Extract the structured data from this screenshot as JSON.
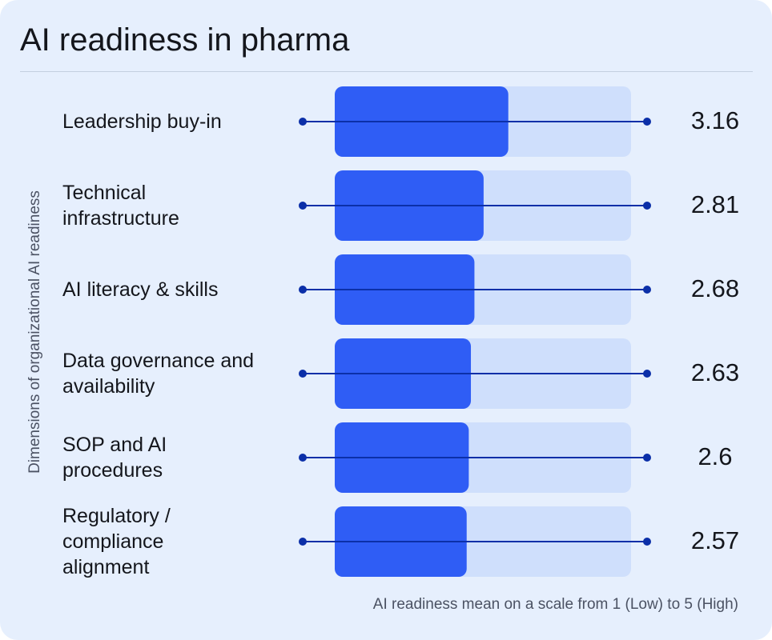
{
  "chart_data": {
    "type": "bar",
    "orientation": "horizontal",
    "title": "AI readiness in pharma",
    "y_label": "Dimensions of organizational AI readiness",
    "x_label": "AI readiness mean on a scale from 1 (Low) to 5 (High)",
    "categories": [
      "Leadership buy-in",
      "Technical infrastructure",
      "AI literacy & skills",
      "Data governance and availability",
      "SOP and AI procedures",
      "Regulatory / compliance alignment"
    ],
    "values": [
      3.16,
      2.81,
      2.68,
      2.63,
      2.6,
      2.57
    ],
    "color": "#2f5df5",
    "track_color": "#cfdffc",
    "line_color": "#0b2fa8",
    "xlim": [
      0.7,
      4.9
    ]
  }
}
